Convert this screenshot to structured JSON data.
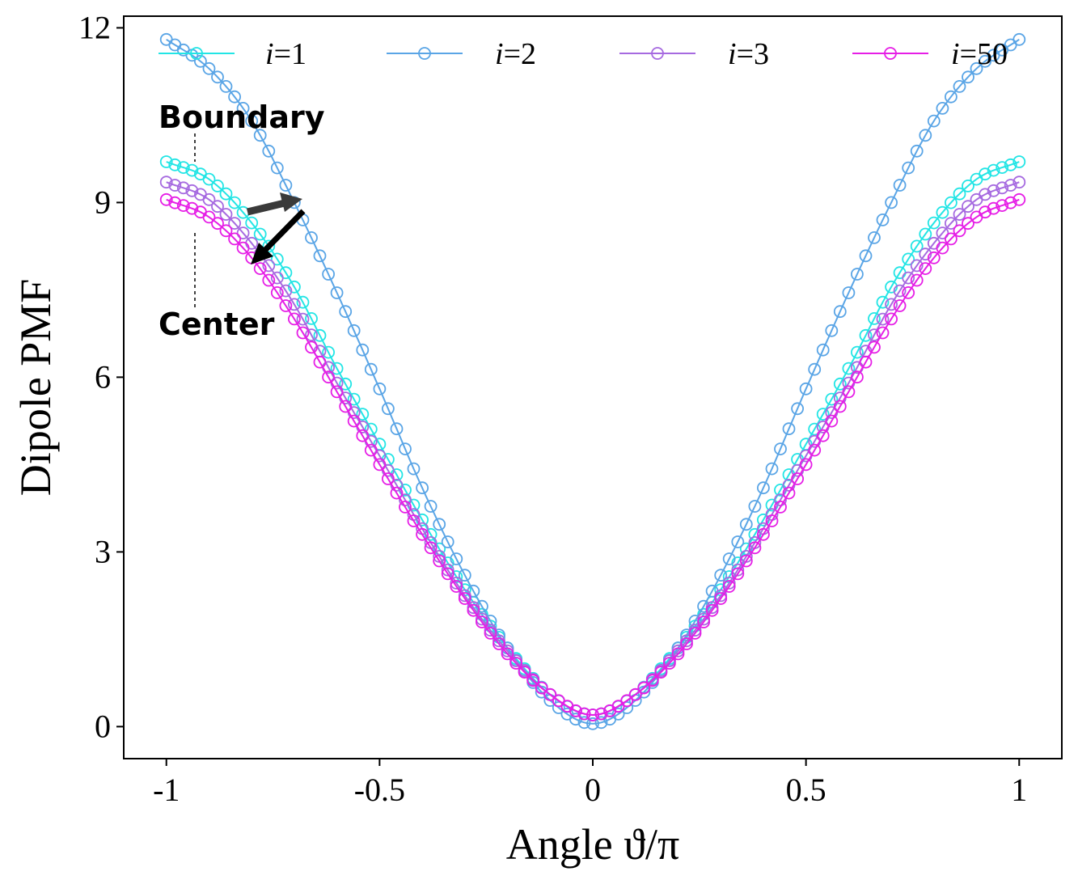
{
  "chart_data": {
    "type": "line",
    "title": "",
    "xlabel": "Angle ϑ/π",
    "ylabel": "Dipole PMF",
    "xlim": [
      -1.1,
      1.1
    ],
    "ylim": [
      -0.55,
      12.2
    ],
    "xticks": [
      -1,
      -0.5,
      0,
      0.5,
      1
    ],
    "xtick_labels": [
      "-1",
      "-0.5",
      "0",
      "0.5",
      "1"
    ],
    "yticks": [
      0,
      3,
      6,
      9,
      12
    ],
    "ytick_labels": [
      "0",
      "3",
      "6",
      "9",
      "12"
    ],
    "grid": false,
    "legend_position": "top",
    "marker": "open-circle",
    "series": [
      {
        "name": "i=1",
        "index_symbol": "i",
        "index_value": "=1",
        "color": "#22e5e5",
        "x": [
          -1,
          -0.9,
          -0.8,
          -0.7,
          -0.6,
          -0.5,
          -0.4,
          -0.3,
          -0.2,
          -0.1,
          0,
          0.1,
          0.2,
          0.3,
          0.4,
          0.5,
          0.6,
          0.7,
          0.8,
          0.9,
          1
        ],
        "y": [
          9.7,
          9.4,
          8.65,
          7.55,
          6.15,
          4.85,
          3.55,
          2.35,
          1.35,
          0.55,
          0.2,
          0.55,
          1.35,
          2.35,
          3.55,
          4.85,
          6.15,
          7.55,
          8.65,
          9.4,
          9.7
        ]
      },
      {
        "name": "i=2",
        "index_symbol": "i",
        "index_value": "=2",
        "color": "#5aa5e6",
        "x": [
          -1,
          -0.9,
          -0.8,
          -0.7,
          -0.6,
          -0.5,
          -0.4,
          -0.3,
          -0.2,
          -0.1,
          0,
          0.1,
          0.2,
          0.3,
          0.4,
          0.5,
          0.6,
          0.7,
          0.8,
          0.9,
          1
        ],
        "y": [
          11.8,
          11.3,
          10.4,
          9.0,
          7.45,
          5.8,
          4.1,
          2.6,
          1.35,
          0.45,
          0.05,
          0.45,
          1.35,
          2.6,
          4.1,
          5.8,
          7.45,
          9.0,
          10.4,
          11.3,
          11.8
        ]
      },
      {
        "name": "i=3",
        "index_symbol": "i",
        "index_value": "=3",
        "color": "#a66ae0",
        "x": [
          -1,
          -0.9,
          -0.8,
          -0.7,
          -0.6,
          -0.5,
          -0.4,
          -0.3,
          -0.2,
          -0.1,
          0,
          0.1,
          0.2,
          0.3,
          0.4,
          0.5,
          0.6,
          0.7,
          0.8,
          0.9,
          1
        ],
        "y": [
          9.35,
          9.05,
          8.3,
          7.25,
          5.9,
          4.65,
          3.4,
          2.25,
          1.3,
          0.55,
          0.2,
          0.55,
          1.3,
          2.25,
          3.4,
          4.65,
          5.9,
          7.25,
          8.3,
          9.05,
          9.35
        ]
      },
      {
        "name": "i=50",
        "index_symbol": "i",
        "index_value": "=50",
        "color": "#e61ee6",
        "x": [
          -1,
          -0.9,
          -0.8,
          -0.7,
          -0.6,
          -0.5,
          -0.4,
          -0.3,
          -0.2,
          -0.1,
          0,
          0.1,
          0.2,
          0.3,
          0.4,
          0.5,
          0.6,
          0.7,
          0.8,
          0.9,
          1
        ],
        "y": [
          9.05,
          8.75,
          8.05,
          7.0,
          5.75,
          4.5,
          3.3,
          2.2,
          1.25,
          0.55,
          0.2,
          0.55,
          1.25,
          2.2,
          3.3,
          4.5,
          5.75,
          7.0,
          8.05,
          8.75,
          9.05
        ]
      }
    ],
    "annotations": {
      "top_label": "Boundary",
      "bottom_label": "Center"
    }
  }
}
